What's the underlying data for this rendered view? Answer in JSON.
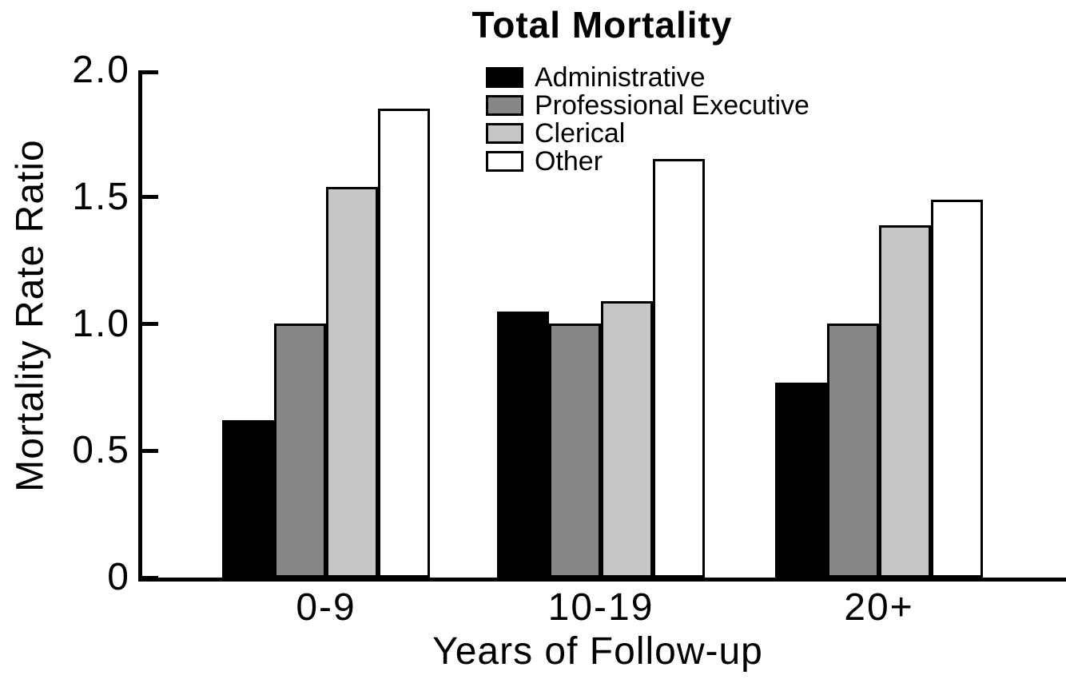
{
  "chart_data": {
    "type": "bar",
    "title": "Total Mortality",
    "xlabel": "Years of Follow-up",
    "ylabel": "Mortality Rate Ratio",
    "categories": [
      "0-9",
      "10-19",
      "20+"
    ],
    "series": [
      {
        "name": "Administrative",
        "color": "#000000",
        "values": [
          0.62,
          1.05,
          0.77
        ]
      },
      {
        "name": "Professional Executive",
        "color": "#878787",
        "values": [
          1.0,
          1.0,
          1.0
        ]
      },
      {
        "name": "Clerical",
        "color": "#c6c6c6",
        "values": [
          1.54,
          1.09,
          1.39
        ]
      },
      {
        "name": "Other",
        "color": "#ffffff",
        "values": [
          1.85,
          1.65,
          1.49
        ]
      }
    ],
    "ylim": [
      0,
      2.0
    ],
    "yticks": [
      0,
      0.5,
      1.0,
      1.5,
      2.0
    ],
    "ytick_labels": [
      "0",
      "0.5",
      "1.0",
      "1.5",
      "2.0"
    ],
    "grid": false,
    "legend_position": "top-center",
    "bar_border_color": "#000000",
    "axis_color": "#000000"
  }
}
